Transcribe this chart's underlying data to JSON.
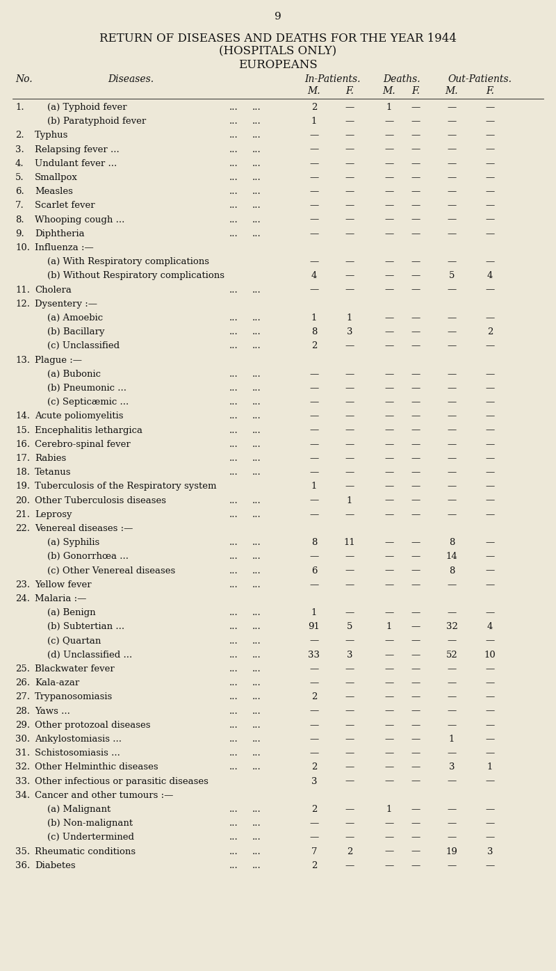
{
  "page_number": "9",
  "title_line1": "RETURN OF DISEASES AND DEATHS FOR THE YEAR 1944",
  "title_line2": "(HOSPITALS ONLY)",
  "title_line3": "EUROPEANS",
  "bg_color": "#ede8d8",
  "text_color": "#111111",
  "rows": [
    {
      "no": "1.",
      "disease": "(a) Typhoid fever",
      "indent": true,
      "has_dots": true,
      "ip_m": "2",
      "ip_f": "—",
      "d_m": "1",
      "d_f": "—",
      "op_m": "—",
      "op_f": "—"
    },
    {
      "no": "",
      "disease": "(b) Paratyphoid fever",
      "indent": true,
      "has_dots": true,
      "ip_m": "1",
      "ip_f": "—",
      "d_m": "—",
      "d_f": "—",
      "op_m": "—",
      "op_f": "—"
    },
    {
      "no": "2.",
      "disease": "Typhus",
      "indent": false,
      "has_dots": true,
      "ip_m": "—",
      "ip_f": "—",
      "d_m": "—",
      "d_f": "—",
      "op_m": "—",
      "op_f": "—"
    },
    {
      "no": "3.",
      "disease": "Relapsing fever ...",
      "indent": false,
      "has_dots": true,
      "ip_m": "—",
      "ip_f": "—",
      "d_m": "—",
      "d_f": "—",
      "op_m": "—",
      "op_f": "—"
    },
    {
      "no": "4.",
      "disease": "Undulant fever ...",
      "indent": false,
      "has_dots": true,
      "ip_m": "—",
      "ip_f": "—",
      "d_m": "—",
      "d_f": "—",
      "op_m": "—",
      "op_f": "—"
    },
    {
      "no": "5.",
      "disease": "Smallpox",
      "indent": false,
      "has_dots": true,
      "ip_m": "—",
      "ip_f": "—",
      "d_m": "—",
      "d_f": "—",
      "op_m": "—",
      "op_f": "—"
    },
    {
      "no": "6.",
      "disease": "Measles",
      "indent": false,
      "has_dots": true,
      "ip_m": "—",
      "ip_f": "—",
      "d_m": "—",
      "d_f": "—",
      "op_m": "—",
      "op_f": "—"
    },
    {
      "no": "7.",
      "disease": "Scarlet fever",
      "indent": false,
      "has_dots": true,
      "ip_m": "—",
      "ip_f": "—",
      "d_m": "—",
      "d_f": "—",
      "op_m": "—",
      "op_f": "—"
    },
    {
      "no": "8.",
      "disease": "Whooping cough ...",
      "indent": false,
      "has_dots": true,
      "ip_m": "—",
      "ip_f": "—",
      "d_m": "—",
      "d_f": "—",
      "op_m": "—",
      "op_f": "—"
    },
    {
      "no": "9.",
      "disease": "Diphtheria",
      "indent": false,
      "has_dots": true,
      "ip_m": "—",
      "ip_f": "—",
      "d_m": "—",
      "d_f": "—",
      "op_m": "—",
      "op_f": "—"
    },
    {
      "no": "10.",
      "disease": "Influenza :—",
      "indent": false,
      "has_dots": false,
      "ip_m": "",
      "ip_f": "",
      "d_m": "",
      "d_f": "",
      "op_m": "",
      "op_f": ""
    },
    {
      "no": "",
      "disease": "(a) With Respiratory complications",
      "indent": true,
      "has_dots": false,
      "ip_m": "—",
      "ip_f": "—",
      "d_m": "—",
      "d_f": "—",
      "op_m": "—",
      "op_f": "—"
    },
    {
      "no": "",
      "disease": "(b) Without Respiratory complications",
      "indent": true,
      "has_dots": false,
      "ip_m": "4",
      "ip_f": "—",
      "d_m": "—",
      "d_f": "—",
      "op_m": "5",
      "op_f": "4"
    },
    {
      "no": "11.",
      "disease": "Cholera",
      "indent": false,
      "has_dots": true,
      "ip_m": "—",
      "ip_f": "—",
      "d_m": "—",
      "d_f": "—",
      "op_m": "—",
      "op_f": "—"
    },
    {
      "no": "12.",
      "disease": "Dysentery :—",
      "indent": false,
      "has_dots": false,
      "ip_m": "",
      "ip_f": "",
      "d_m": "",
      "d_f": "",
      "op_m": "",
      "op_f": ""
    },
    {
      "no": "",
      "disease": "(a) Amoebic",
      "indent": true,
      "has_dots": true,
      "ip_m": "1",
      "ip_f": "1",
      "d_m": "—",
      "d_f": "—",
      "op_m": "—",
      "op_f": "—"
    },
    {
      "no": "",
      "disease": "(b) Bacillary",
      "indent": true,
      "has_dots": true,
      "ip_m": "8",
      "ip_f": "3",
      "d_m": "—",
      "d_f": "—",
      "op_m": "—",
      "op_f": "2"
    },
    {
      "no": "",
      "disease": "(c) Unclassified",
      "indent": true,
      "has_dots": true,
      "ip_m": "2",
      "ip_f": "—",
      "d_m": "—",
      "d_f": "—",
      "op_m": "—",
      "op_f": "—"
    },
    {
      "no": "13.",
      "disease": "Plague :—",
      "indent": false,
      "has_dots": false,
      "ip_m": "",
      "ip_f": "",
      "d_m": "",
      "d_f": "",
      "op_m": "",
      "op_f": ""
    },
    {
      "no": "",
      "disease": "(a) Bubonic",
      "indent": true,
      "has_dots": true,
      "ip_m": "—",
      "ip_f": "—",
      "d_m": "—",
      "d_f": "—",
      "op_m": "—",
      "op_f": "—"
    },
    {
      "no": "",
      "disease": "(b) Pneumonic ...",
      "indent": true,
      "has_dots": true,
      "ip_m": "—",
      "ip_f": "—",
      "d_m": "—",
      "d_f": "—",
      "op_m": "—",
      "op_f": "—"
    },
    {
      "no": "",
      "disease": "(c) Septicæmic ...",
      "indent": true,
      "has_dots": true,
      "ip_m": "—",
      "ip_f": "—",
      "d_m": "—",
      "d_f": "—",
      "op_m": "—",
      "op_f": "—"
    },
    {
      "no": "14.",
      "disease": "Acute poliomyelitis",
      "indent": false,
      "has_dots": true,
      "ip_m": "—",
      "ip_f": "—",
      "d_m": "—",
      "d_f": "—",
      "op_m": "—",
      "op_f": "—"
    },
    {
      "no": "15.",
      "disease": "Encephalitis lethargica",
      "indent": false,
      "has_dots": true,
      "ip_m": "—",
      "ip_f": "—",
      "d_m": "—",
      "d_f": "—",
      "op_m": "—",
      "op_f": "—"
    },
    {
      "no": "16.",
      "disease": "Cerebro-spinal fever",
      "indent": false,
      "has_dots": true,
      "ip_m": "—",
      "ip_f": "—",
      "d_m": "—",
      "d_f": "—",
      "op_m": "—",
      "op_f": "—"
    },
    {
      "no": "17.",
      "disease": "Rabies",
      "indent": false,
      "has_dots": true,
      "ip_m": "—",
      "ip_f": "—",
      "d_m": "—",
      "d_f": "—",
      "op_m": "—",
      "op_f": "—"
    },
    {
      "no": "18.",
      "disease": "Tetanus",
      "indent": false,
      "has_dots": true,
      "ip_m": "—",
      "ip_f": "—",
      "d_m": "—",
      "d_f": "—",
      "op_m": "—",
      "op_f": "—"
    },
    {
      "no": "19.",
      "disease": "Tuberculosis of the Respiratory system",
      "indent": false,
      "has_dots": false,
      "ip_m": "1",
      "ip_f": "—",
      "d_m": "—",
      "d_f": "—",
      "op_m": "—",
      "op_f": "—"
    },
    {
      "no": "20.",
      "disease": "Other Tuberculosis diseases",
      "indent": false,
      "has_dots": true,
      "ip_m": "—",
      "ip_f": "1",
      "d_m": "—",
      "d_f": "—",
      "op_m": "—",
      "op_f": "—"
    },
    {
      "no": "21.",
      "disease": "Leprosy",
      "indent": false,
      "has_dots": true,
      "ip_m": "—",
      "ip_f": "—",
      "d_m": "—",
      "d_f": "—",
      "op_m": "—",
      "op_f": "—"
    },
    {
      "no": "22.",
      "disease": "Venereal diseases :—",
      "indent": false,
      "has_dots": false,
      "ip_m": "",
      "ip_f": "",
      "d_m": "",
      "d_f": "",
      "op_m": "",
      "op_f": ""
    },
    {
      "no": "",
      "disease": "(a) Syphilis",
      "indent": true,
      "has_dots": true,
      "ip_m": "8",
      "ip_f": "11",
      "d_m": "—",
      "d_f": "—",
      "op_m": "8",
      "op_f": "—"
    },
    {
      "no": "",
      "disease": "(b) Gonorrhœa ...",
      "indent": true,
      "has_dots": true,
      "ip_m": "—",
      "ip_f": "—",
      "d_m": "—",
      "d_f": "—",
      "op_m": "14",
      "op_f": "—"
    },
    {
      "no": "",
      "disease": "(c) Other Venereal diseases",
      "indent": true,
      "has_dots": true,
      "ip_m": "6",
      "ip_f": "—",
      "d_m": "—",
      "d_f": "—",
      "op_m": "8",
      "op_f": "—"
    },
    {
      "no": "23.",
      "disease": "Yellow fever",
      "indent": false,
      "has_dots": true,
      "ip_m": "—",
      "ip_f": "—",
      "d_m": "—",
      "d_f": "—",
      "op_m": "—",
      "op_f": "—"
    },
    {
      "no": "24.",
      "disease": "Malaria :—",
      "indent": false,
      "has_dots": false,
      "ip_m": "",
      "ip_f": "",
      "d_m": "",
      "d_f": "",
      "op_m": "",
      "op_f": ""
    },
    {
      "no": "",
      "disease": "(a) Benign",
      "indent": true,
      "has_dots": true,
      "ip_m": "1",
      "ip_f": "—",
      "d_m": "—",
      "d_f": "—",
      "op_m": "—",
      "op_f": "—"
    },
    {
      "no": "",
      "disease": "(b) Subtertian ...",
      "indent": true,
      "has_dots": true,
      "ip_m": "91",
      "ip_f": "5",
      "d_m": "1",
      "d_f": "—",
      "op_m": "32",
      "op_f": "4"
    },
    {
      "no": "",
      "disease": "(c) Quartan",
      "indent": true,
      "has_dots": true,
      "ip_m": "—",
      "ip_f": "—",
      "d_m": "—",
      "d_f": "—",
      "op_m": "—",
      "op_f": "—"
    },
    {
      "no": "",
      "disease": "(d) Unclassified ...",
      "indent": true,
      "has_dots": true,
      "ip_m": "33",
      "ip_f": "3",
      "d_m": "—",
      "d_f": "—",
      "op_m": "52",
      "op_f": "10"
    },
    {
      "no": "25.",
      "disease": "Blackwater fever",
      "indent": false,
      "has_dots": true,
      "ip_m": "—",
      "ip_f": "—",
      "d_m": "—",
      "d_f": "—",
      "op_m": "—",
      "op_f": "—"
    },
    {
      "no": "26.",
      "disease": "Kala-azar",
      "indent": false,
      "has_dots": true,
      "ip_m": "—",
      "ip_f": "—",
      "d_m": "—",
      "d_f": "—",
      "op_m": "—",
      "op_f": "—"
    },
    {
      "no": "27.",
      "disease": "Trypanosomiasis",
      "indent": false,
      "has_dots": true,
      "ip_m": "2",
      "ip_f": "—",
      "d_m": "—",
      "d_f": "—",
      "op_m": "—",
      "op_f": "—"
    },
    {
      "no": "28.",
      "disease": "Yaws ...",
      "indent": false,
      "has_dots": true,
      "ip_m": "—",
      "ip_f": "—",
      "d_m": "—",
      "d_f": "—",
      "op_m": "—",
      "op_f": "—"
    },
    {
      "no": "29.",
      "disease": "Other protozoal diseases",
      "indent": false,
      "has_dots": true,
      "ip_m": "—",
      "ip_f": "—",
      "d_m": "—",
      "d_f": "—",
      "op_m": "—",
      "op_f": "—"
    },
    {
      "no": "30.",
      "disease": "Ankylostomiasis ...",
      "indent": false,
      "has_dots": true,
      "ip_m": "—",
      "ip_f": "—",
      "d_m": "—",
      "d_f": "—",
      "op_m": "1",
      "op_f": "—"
    },
    {
      "no": "31.",
      "disease": "Schistosomiasis ...",
      "indent": false,
      "has_dots": true,
      "ip_m": "—",
      "ip_f": "—",
      "d_m": "—",
      "d_f": "—",
      "op_m": "—",
      "op_f": "—"
    },
    {
      "no": "32.",
      "disease": "Other Helminthic diseases",
      "indent": false,
      "has_dots": true,
      "ip_m": "2",
      "ip_f": "—",
      "d_m": "—",
      "d_f": "—",
      "op_m": "3",
      "op_f": "1"
    },
    {
      "no": "33.",
      "disease": "Other infectious or parasitic diseases",
      "indent": false,
      "has_dots": false,
      "ip_m": "3",
      "ip_f": "—",
      "d_m": "—",
      "d_f": "—",
      "op_m": "—",
      "op_f": "—"
    },
    {
      "no": "34.",
      "disease": "Cancer and other tumours :—",
      "indent": false,
      "has_dots": false,
      "ip_m": "",
      "ip_f": "",
      "d_m": "",
      "d_f": "",
      "op_m": "",
      "op_f": ""
    },
    {
      "no": "",
      "disease": "(a) Malignant",
      "indent": true,
      "has_dots": true,
      "ip_m": "2",
      "ip_f": "—",
      "d_m": "1",
      "d_f": "—",
      "op_m": "—",
      "op_f": "—"
    },
    {
      "no": "",
      "disease": "(b) Non-malignant",
      "indent": true,
      "has_dots": true,
      "ip_m": "—",
      "ip_f": "—",
      "d_m": "—",
      "d_f": "—",
      "op_m": "—",
      "op_f": "—"
    },
    {
      "no": "",
      "disease": "(c) Undertermined",
      "indent": true,
      "has_dots": true,
      "ip_m": "—",
      "ip_f": "—",
      "d_m": "—",
      "d_f": "—",
      "op_m": "—",
      "op_f": "—"
    },
    {
      "no": "35.",
      "disease": "Rheumatic conditions",
      "indent": false,
      "has_dots": true,
      "ip_m": "7",
      "ip_f": "2",
      "d_m": "—",
      "d_f": "—",
      "op_m": "19",
      "op_f": "3"
    },
    {
      "no": "36.",
      "disease": "Diabetes",
      "indent": false,
      "has_dots": true,
      "ip_m": "2",
      "ip_f": "—",
      "d_m": "—",
      "d_f": "—",
      "op_m": "—",
      "op_f": "—"
    }
  ]
}
